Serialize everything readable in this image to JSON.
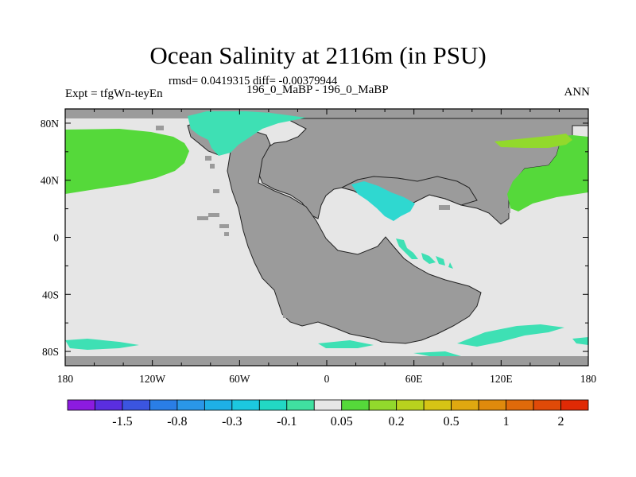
{
  "header": {
    "title": "Ocean Salinity at 2116m (in PSU)",
    "stats": "rmsd= 0.0419315 diff= -0.00379944",
    "left_label": "Expt = tfgWn-teyEn",
    "center_label": "196_0_MaBP - 196_0_MaBP",
    "right_label": "ANN"
  },
  "chart_data": {
    "type": "heatmap",
    "title": "Ocean Salinity at 2116m (in PSU)",
    "subtitle": "rmsd= 0.0419315 diff= -0.00379944",
    "xlabel": "",
    "ylabel": "",
    "xlim": [
      -180,
      180
    ],
    "ylim": [
      -90,
      90
    ],
    "x_ticks": [
      {
        "value": -180,
        "label": "180"
      },
      {
        "value": -120,
        "label": "120W"
      },
      {
        "value": -60,
        "label": "60W"
      },
      {
        "value": 0,
        "label": "0"
      },
      {
        "value": 60,
        "label": "60E"
      },
      {
        "value": 120,
        "label": "120E"
      },
      {
        "value": 180,
        "label": "180"
      }
    ],
    "y_ticks": [
      {
        "value": 80,
        "label": "80N"
      },
      {
        "value": 40,
        "label": "40N"
      },
      {
        "value": 0,
        "label": "0"
      },
      {
        "value": -40,
        "label": "40S"
      },
      {
        "value": -80,
        "label": "80S"
      }
    ],
    "colorbar": {
      "colors": [
        "#8c1be0",
        "#5a2ee0",
        "#3b55e0",
        "#2a7ee6",
        "#2a97e8",
        "#1eb0e6",
        "#1cc8e0",
        "#22d8c4",
        "#40e0a0",
        "#e6e6e6",
        "#55d93a",
        "#92d92c",
        "#b8d21e",
        "#d6c415",
        "#e0a810",
        "#e08a0c",
        "#e06a0a",
        "#e04a08",
        "#e02a05"
      ],
      "labels": [
        "-1.5",
        "-0.8",
        "-0.3",
        "-0.1",
        "0.05",
        "0.2",
        "0.5",
        "1",
        "2"
      ]
    },
    "regions": [
      {
        "name": "background-ocean",
        "class": "near-zero",
        "color": "#e6e6e6"
      },
      {
        "name": "land",
        "class": "land",
        "color": "#9b9b9b"
      },
      {
        "name": "north-pacific-anomaly",
        "class": "0.05 to 0.2",
        "color": "#55d93a"
      },
      {
        "name": "nw-tethys-anomaly",
        "class": "0.2 to 0.5",
        "color": "#92d92c"
      },
      {
        "name": "east-asia-anomaly",
        "class": "0.05 to 0.2",
        "color": "#55d93a"
      },
      {
        "name": "arctic-anomaly",
        "class": "-0.1 to -0.05",
        "color": "#40e0a0"
      },
      {
        "name": "tethys-anomaly",
        "class": "-0.3 to -0.1",
        "color": "#22d8c4"
      },
      {
        "name": "southern-ocean-anomaly",
        "class": "-0.1 to -0.05",
        "color": "#40e0a0"
      }
    ]
  }
}
